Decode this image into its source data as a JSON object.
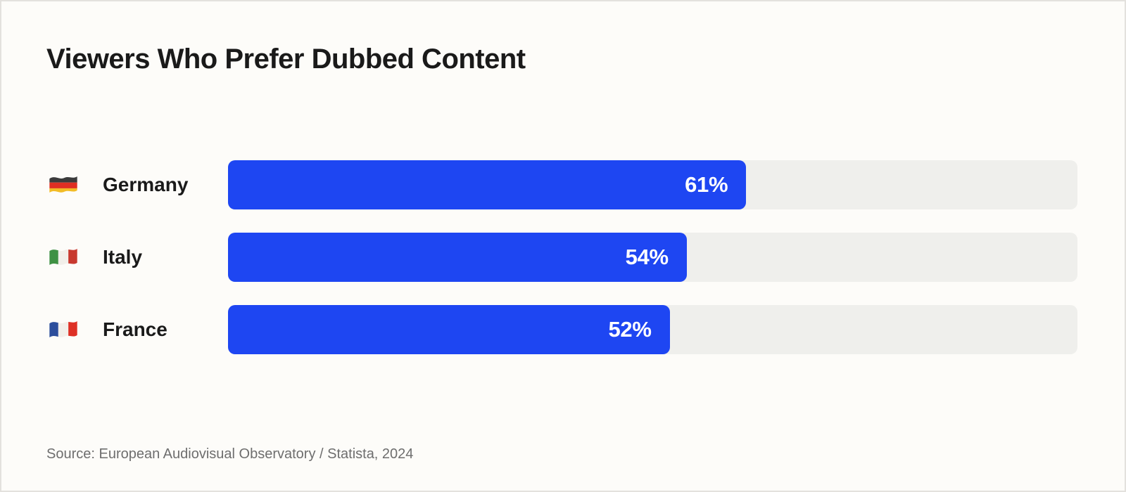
{
  "chart": {
    "title": "Viewers Who Prefer Dubbed Content",
    "source": "Source: European Audiovisual Observatory / Statista, 2024"
  },
  "chart_data": {
    "type": "bar",
    "orientation": "horizontal",
    "title": "Viewers Who Prefer Dubbed Content",
    "categories": [
      "Germany",
      "Italy",
      "France"
    ],
    "values": [
      61,
      54,
      52
    ],
    "value_labels": [
      "61%",
      "54%",
      "52%"
    ],
    "unit": "%",
    "xlim": [
      0,
      100
    ],
    "grid": false,
    "legend": false,
    "value_label_position": "inside-end",
    "flag_icons": [
      "germany-flag-icon",
      "italy-flag-icon",
      "france-flag-icon"
    ],
    "source": "Source: European Audiovisual Observatory / Statista, 2024",
    "colors": {
      "bar": "#1E46F2",
      "track": "#EFEFEC",
      "background": "#FDFCF9",
      "frame_border": "#E3E1DD",
      "title_text": "#1A1A1A",
      "label_text": "#1A1A1A",
      "value_text": "#FFFFFF",
      "source_text": "#6E6E6E"
    }
  }
}
